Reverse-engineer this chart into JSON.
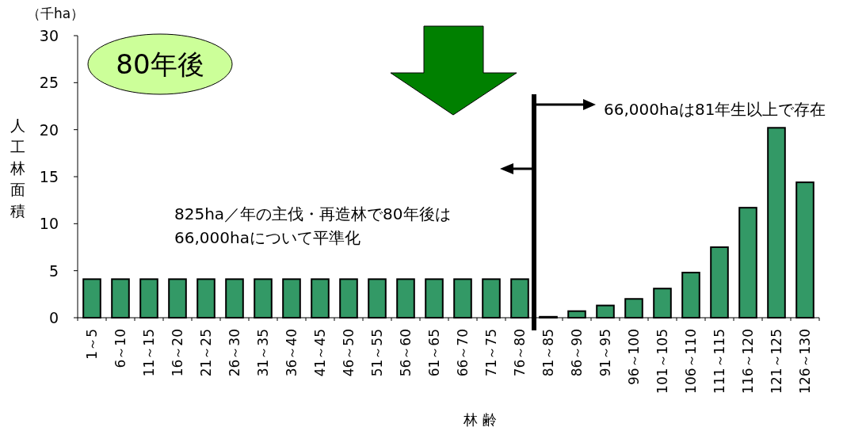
{
  "chart_data": {
    "type": "bar",
    "xlabel": "林 齢",
    "ylabel": "人工林面積",
    "categories": [
      "1～5",
      "6～10",
      "11～15",
      "16～20",
      "21～25",
      "26～30",
      "31～35",
      "36～40",
      "41～45",
      "46～50",
      "51～55",
      "56～60",
      "61～65",
      "66～70",
      "71～75",
      "76～80",
      "81～85",
      "86～90",
      "91～95",
      "96～100",
      "101～105",
      "106～110",
      "111～115",
      "116～120",
      "121～125",
      "126～130"
    ],
    "values": [
      4.1,
      4.1,
      4.1,
      4.1,
      4.1,
      4.1,
      4.1,
      4.1,
      4.1,
      4.1,
      4.1,
      4.1,
      4.1,
      4.1,
      4.1,
      4.1,
      0.1,
      0.7,
      1.3,
      2.0,
      3.1,
      4.8,
      7.5,
      11.7,
      20.2,
      14.4
    ],
    "color": "#339966",
    "ylim": [
      0,
      30
    ],
    "yticks": [
      0,
      5,
      10,
      15,
      20,
      25,
      30
    ],
    "annotations": [
      "（千ha）",
      "80年後",
      "825ha／年の主伐・再造林で80年後は\n66,000haについて平準化",
      "66,000haは81年生以上で存在"
    ]
  }
}
